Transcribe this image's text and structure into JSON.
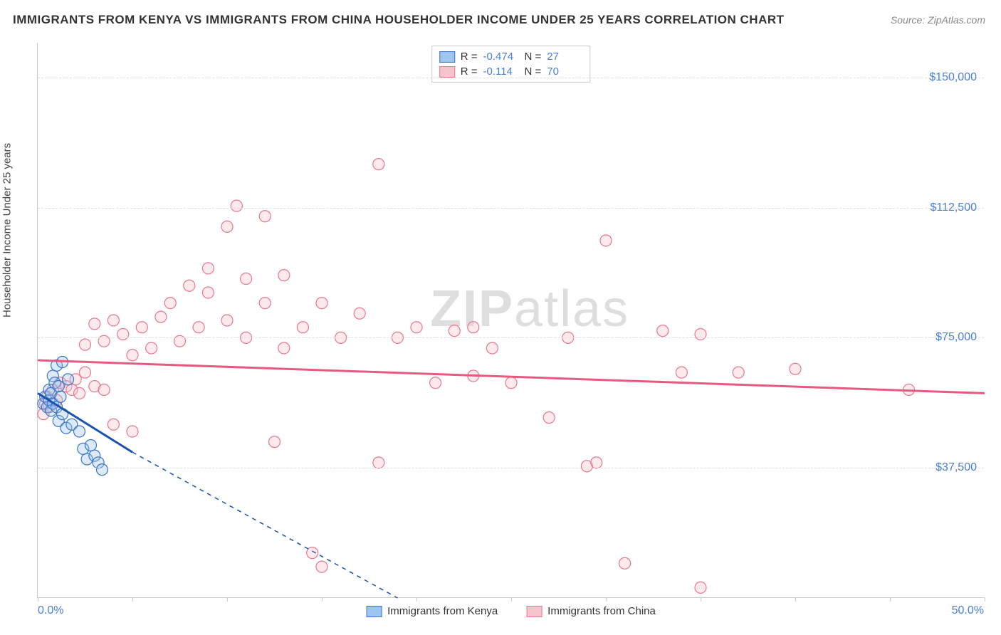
{
  "title": "IMMIGRANTS FROM KENYA VS IMMIGRANTS FROM CHINA HOUSEHOLDER INCOME UNDER 25 YEARS CORRELATION CHART",
  "source": "Source: ZipAtlas.com",
  "watermark_bold": "ZIP",
  "watermark_light": "atlas",
  "y_axis_title": "Householder Income Under 25 years",
  "chart": {
    "type": "scatter",
    "background_color": "#ffffff",
    "grid_color": "#dddddd",
    "axis_color": "#cccccc",
    "xlim": [
      0,
      50
    ],
    "ylim": [
      0,
      160000
    ],
    "x_tick_positions": [
      0,
      5,
      10,
      15,
      20,
      25,
      30,
      35,
      40,
      45,
      50
    ],
    "x_label_min": "0.0%",
    "x_label_max": "50.0%",
    "y_ticks": [
      {
        "v": 37500,
        "label": "$37,500"
      },
      {
        "v": 75000,
        "label": "$75,000"
      },
      {
        "v": 112500,
        "label": "$112,500"
      },
      {
        "v": 150000,
        "label": "$150,000"
      }
    ],
    "marker_radius": 8,
    "marker_fill_opacity": 0.35,
    "marker_stroke_width": 1.2,
    "trend_line_width": 3,
    "series": [
      {
        "name": "Immigrants from Kenya",
        "color_fill": "#9ec4f0",
        "color_stroke": "#3b76c4",
        "trend_color": "#1952b0",
        "r": "-0.474",
        "n": "27",
        "trend": {
          "x1": 0,
          "y1": 59000,
          "x2": 5,
          "y2": 42000,
          "dash_ext_x2": 19,
          "dash_ext_y2": 0
        },
        "points": [
          [
            0.3,
            56000
          ],
          [
            0.4,
            58000
          ],
          [
            0.5,
            55000
          ],
          [
            0.6,
            57000
          ],
          [
            0.6,
            60000
          ],
          [
            0.7,
            54000
          ],
          [
            0.7,
            59000
          ],
          [
            0.8,
            64000
          ],
          [
            0.8,
            56000
          ],
          [
            0.9,
            62000
          ],
          [
            1.0,
            55000
          ],
          [
            1.0,
            67000
          ],
          [
            1.1,
            51000
          ],
          [
            1.1,
            61000
          ],
          [
            1.2,
            58000
          ],
          [
            1.3,
            53000
          ],
          [
            1.3,
            68000
          ],
          [
            1.5,
            49000
          ],
          [
            1.6,
            63000
          ],
          [
            1.8,
            50000
          ],
          [
            2.2,
            48000
          ],
          [
            2.4,
            43000
          ],
          [
            2.6,
            40000
          ],
          [
            2.8,
            44000
          ],
          [
            3.0,
            41000
          ],
          [
            3.2,
            39000
          ],
          [
            3.4,
            37000
          ]
        ]
      },
      {
        "name": "Immigrants from China",
        "color_fill": "#f6c4cc",
        "color_stroke": "#e7788e",
        "trend_color": "#e65a80",
        "r": "-0.114",
        "n": "70",
        "trend": {
          "x1": 0,
          "y1": 68500,
          "x2": 50,
          "y2": 59000
        },
        "points": [
          [
            0.3,
            53000
          ],
          [
            0.4,
            56000
          ],
          [
            0.5,
            58000
          ],
          [
            0.6,
            55000
          ],
          [
            0.8,
            60000
          ],
          [
            1.0,
            57000
          ],
          [
            1.2,
            62000
          ],
          [
            1.5,
            61000
          ],
          [
            1.8,
            60000
          ],
          [
            2.0,
            63000
          ],
          [
            2.2,
            59000
          ],
          [
            2.5,
            65000
          ],
          [
            2.5,
            73000
          ],
          [
            3.0,
            61000
          ],
          [
            3.0,
            79000
          ],
          [
            3.5,
            60000
          ],
          [
            3.5,
            74000
          ],
          [
            4.0,
            50000
          ],
          [
            4.0,
            80000
          ],
          [
            4.5,
            76000
          ],
          [
            5.0,
            70000
          ],
          [
            5.0,
            48000
          ],
          [
            5.5,
            78000
          ],
          [
            6.0,
            72000
          ],
          [
            6.5,
            81000
          ],
          [
            7.0,
            85000
          ],
          [
            7.5,
            74000
          ],
          [
            8.0,
            90000
          ],
          [
            8.5,
            78000
          ],
          [
            9.0,
            88000
          ],
          [
            9.0,
            95000
          ],
          [
            10.0,
            80000
          ],
          [
            10.0,
            107000
          ],
          [
            10.5,
            113000
          ],
          [
            11.0,
            75000
          ],
          [
            11.0,
            92000
          ],
          [
            12.0,
            85000
          ],
          [
            12.0,
            110000
          ],
          [
            12.5,
            45000
          ],
          [
            13.0,
            93000
          ],
          [
            13.0,
            72000
          ],
          [
            14.0,
            78000
          ],
          [
            14.5,
            13000
          ],
          [
            15.0,
            85000
          ],
          [
            15.0,
            9000
          ],
          [
            16.0,
            75000
          ],
          [
            17.0,
            82000
          ],
          [
            18.0,
            125000
          ],
          [
            18.0,
            39000
          ],
          [
            19.0,
            75000
          ],
          [
            20.0,
            78000
          ],
          [
            21.0,
            62000
          ],
          [
            22.0,
            77000
          ],
          [
            23.0,
            64000
          ],
          [
            23.0,
            78000
          ],
          [
            24.0,
            72000
          ],
          [
            25.0,
            62000
          ],
          [
            27.0,
            52000
          ],
          [
            28.0,
            75000
          ],
          [
            29.0,
            38000
          ],
          [
            29.5,
            39000
          ],
          [
            30.0,
            103000
          ],
          [
            31.0,
            10000
          ],
          [
            33.0,
            77000
          ],
          [
            34.0,
            65000
          ],
          [
            35.0,
            3000
          ],
          [
            35.0,
            76000
          ],
          [
            37.0,
            65000
          ],
          [
            40.0,
            66000
          ],
          [
            46.0,
            60000
          ]
        ]
      }
    ],
    "legend_top_labels": {
      "r": "R =",
      "n": "N ="
    },
    "legend_bottom": [
      "Immigrants from Kenya",
      "Immigrants from China"
    ]
  }
}
